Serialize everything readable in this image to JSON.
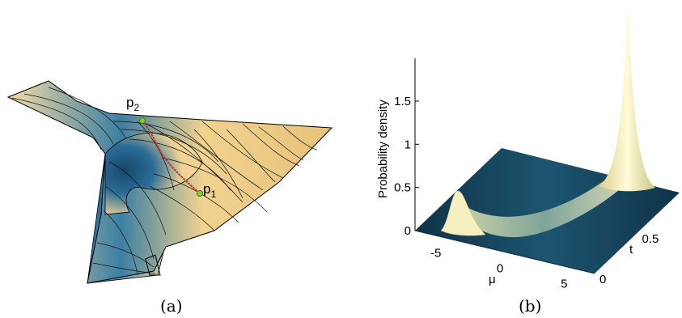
{
  "panel_a": {
    "caption": "(a)",
    "point_labels": [
      {
        "letter": "p",
        "sub": "2"
      },
      {
        "letter": "p",
        "sub": "1"
      }
    ],
    "colors": {
      "surface_light": "#f2d79a",
      "surface_dark": "#1f5d86",
      "path": "#c0392b",
      "point": "#7fd12f"
    }
  },
  "panel_b": {
    "caption": "(b)",
    "ylabel": "Probability density",
    "xlabel": "μ",
    "tlabel": "t",
    "colors": {
      "base": "#123a52",
      "peak": "#fffbd0"
    }
  },
  "chart_data": {
    "type": "surface",
    "zlabel": "Probability density",
    "xlabel": "μ",
    "ylabel": "t",
    "z_ticks": [
      "0",
      "0.5",
      "1",
      "1.5"
    ],
    "x_ticks": [
      "-5",
      "0",
      "5"
    ],
    "y_ticks": [
      "0",
      "0.5"
    ],
    "zlim": [
      0,
      2
    ],
    "xlim": [
      -7,
      7
    ],
    "ylim": [
      0,
      1
    ]
  }
}
